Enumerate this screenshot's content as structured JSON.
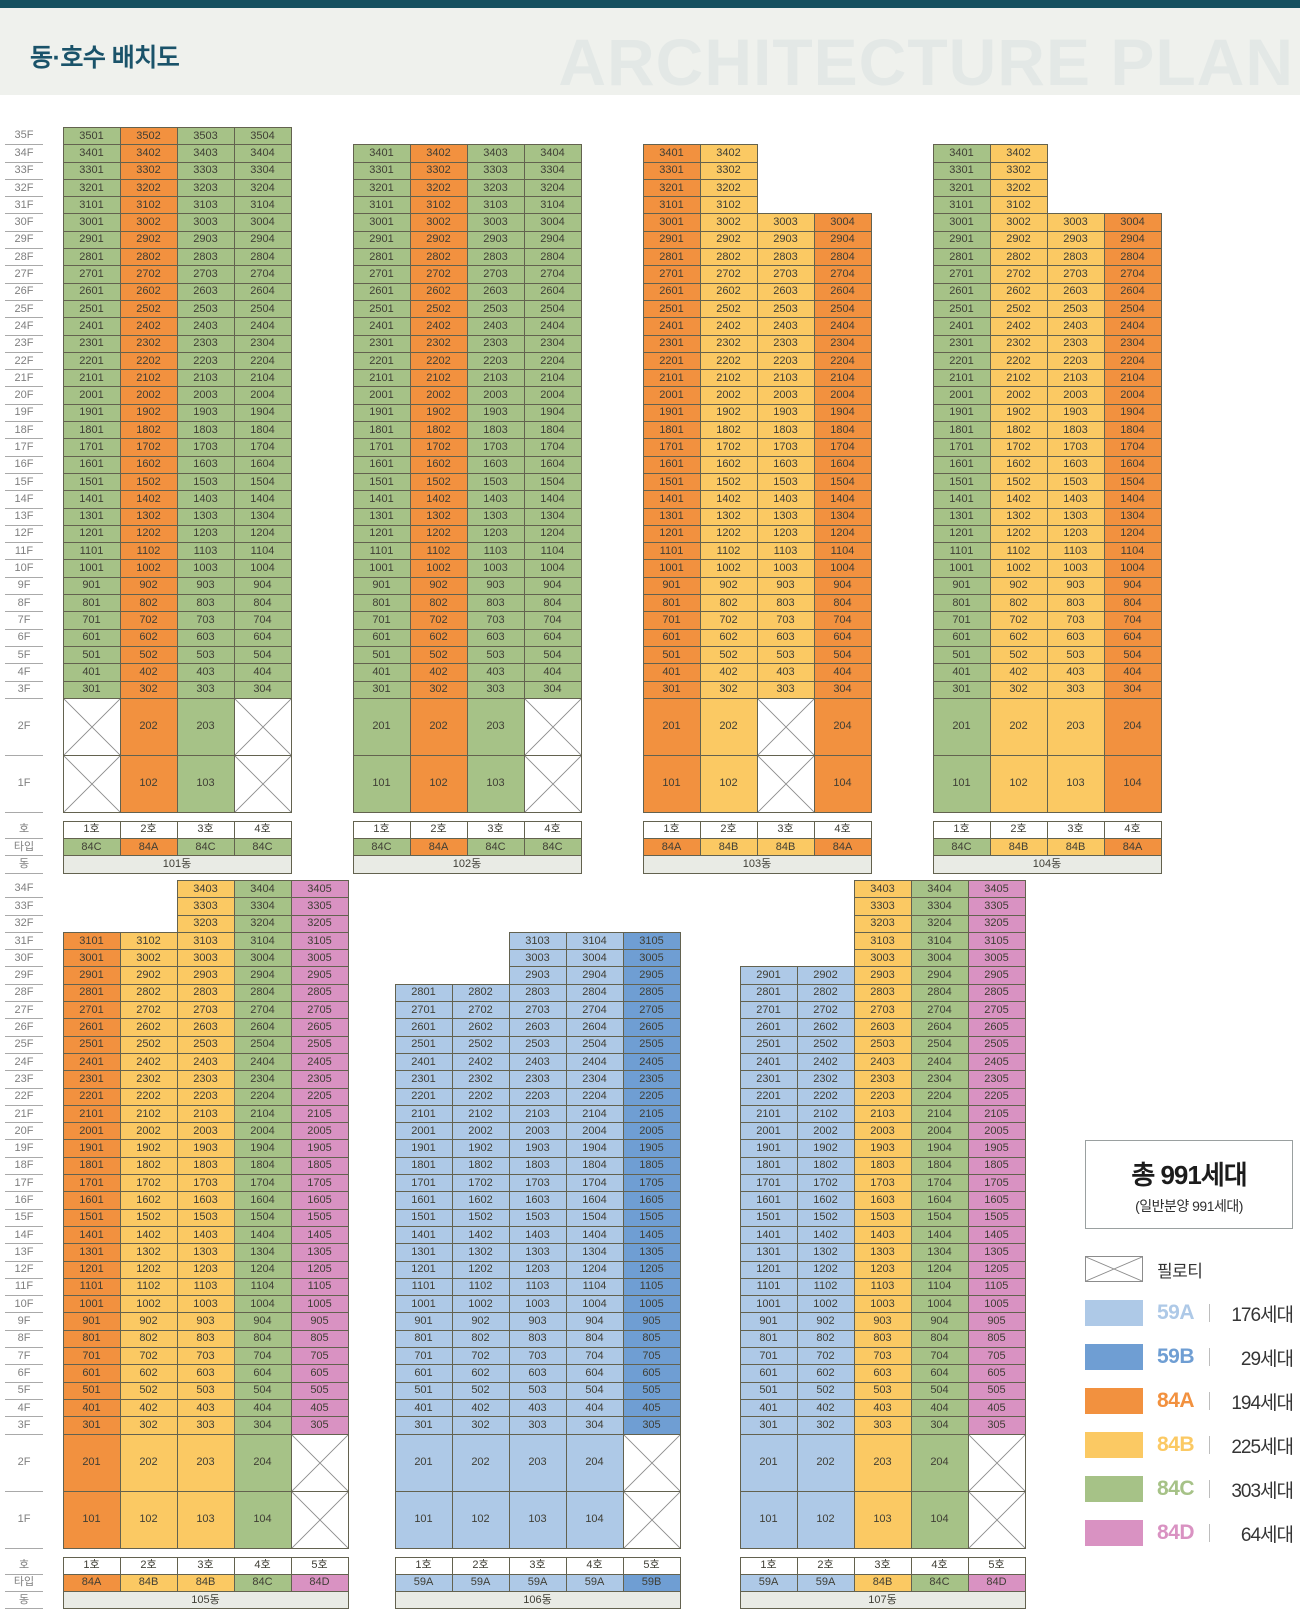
{
  "page": {
    "title": "동·호수 배치도",
    "watermark": "ARCHITECTURE PLAN"
  },
  "labels": {
    "ho": "호",
    "type": "타입",
    "dong": "동",
    "floor_suffix": "F"
  },
  "colors": {
    "59A": "#aec9e7",
    "59B": "#6f9ed3",
    "84A": "#f2913f",
    "84B": "#fbc963",
    "84C": "#a6c287",
    "84D": "#d992c2"
  },
  "legend": {
    "total_title": "총 991세대",
    "total_subtitle": "(일반분양 991세대)",
    "pilotis_label": "필로티",
    "items": [
      {
        "type": "59A",
        "count": "176세대"
      },
      {
        "type": "59B",
        "count": "29세대"
      },
      {
        "type": "84A",
        "count": "194세대"
      },
      {
        "type": "84B",
        "count": "225세대"
      },
      {
        "type": "84C",
        "count": "303세대"
      },
      {
        "type": "84D",
        "count": "64세대"
      }
    ]
  },
  "sections": [
    {
      "max_floor": 35,
      "buildings": [
        {
          "name": "101동",
          "ho": [
            "1호",
            "2호",
            "3호",
            "4호"
          ],
          "types": [
            "84C",
            "84A",
            "84C",
            "84C"
          ],
          "col_top_floor": [
            35,
            35,
            35,
            35
          ],
          "pilotis": [
            "2-1",
            "1-1",
            "2-4",
            "1-4"
          ]
        },
        {
          "name": "102동",
          "ho": [
            "1호",
            "2호",
            "3호",
            "4호"
          ],
          "types": [
            "84C",
            "84A",
            "84C",
            "84C"
          ],
          "col_top_floor": [
            34,
            34,
            34,
            34
          ],
          "pilotis": [
            "2-4",
            "1-4"
          ]
        },
        {
          "name": "103동",
          "ho": [
            "1호",
            "2호",
            "3호",
            "4호"
          ],
          "types": [
            "84A",
            "84B",
            "84B",
            "84A"
          ],
          "col_top_floor": [
            34,
            34,
            30,
            30
          ],
          "pilotis": [
            "2-3",
            "1-3"
          ]
        },
        {
          "name": "104동",
          "ho": [
            "1호",
            "2호",
            "3호",
            "4호"
          ],
          "types": [
            "84C",
            "84B",
            "84B",
            "84A"
          ],
          "col_top_floor": [
            34,
            34,
            30,
            30
          ],
          "pilotis": []
        }
      ]
    },
    {
      "max_floor": 34,
      "buildings": [
        {
          "name": "105동",
          "ho": [
            "1호",
            "2호",
            "3호",
            "4호",
            "5호"
          ],
          "types": [
            "84A",
            "84B",
            "84B",
            "84C",
            "84D"
          ],
          "col_top_floor": [
            31,
            31,
            34,
            34,
            34
          ],
          "pilotis": [
            "2-5",
            "1-5"
          ]
        },
        {
          "name": "106동",
          "ho": [
            "1호",
            "2호",
            "3호",
            "4호",
            "5호"
          ],
          "types": [
            "59A",
            "59A",
            "59A",
            "59A",
            "59B"
          ],
          "col_top_floor": [
            28,
            28,
            31,
            31,
            31
          ],
          "pilotis": [
            "2-5",
            "1-5"
          ]
        },
        {
          "name": "107동",
          "ho": [
            "1호",
            "2호",
            "3호",
            "4호",
            "5호"
          ],
          "types": [
            "59A",
            "59A",
            "84B",
            "84C",
            "84D"
          ],
          "col_top_floor": [
            29,
            29,
            34,
            34,
            34
          ],
          "pilotis": [
            "2-5",
            "1-5"
          ]
        }
      ]
    }
  ]
}
